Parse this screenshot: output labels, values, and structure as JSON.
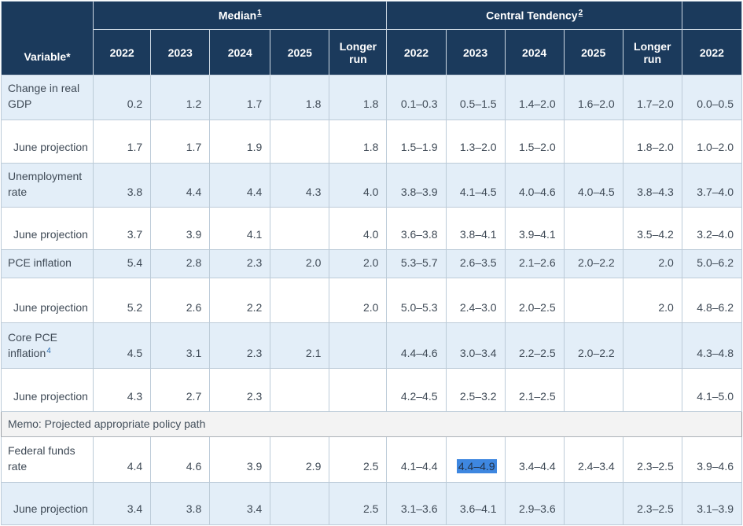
{
  "table": {
    "variable_header": "Variable*",
    "groups": [
      {
        "label": "Median",
        "footnote": "1"
      },
      {
        "label": "Central Tendency",
        "footnote": "2"
      },
      {
        "label": "",
        "footnote": ""
      }
    ],
    "year_headers": [
      "2022",
      "2023",
      "2024",
      "2025",
      "Longer run",
      "2022",
      "2023",
      "2024",
      "2025",
      "Longer run",
      "2022"
    ],
    "rows": [
      {
        "type": "data",
        "label": "Change in real GDP",
        "footnote": "",
        "indent": false,
        "shade": "blue",
        "cells": [
          "0.2",
          "1.2",
          "1.7",
          "1.8",
          "1.8",
          "0.1–0.3",
          "0.5–1.5",
          "1.4–2.0",
          "1.6–2.0",
          "1.7–2.0",
          "0.0–0.5"
        ]
      },
      {
        "type": "data",
        "label": "June projection",
        "footnote": "",
        "indent": true,
        "shade": "white",
        "cells": [
          "1.7",
          "1.7",
          "1.9",
          "",
          "1.8",
          "1.5–1.9",
          "1.3–2.0",
          "1.5–2.0",
          "",
          "1.8–2.0",
          "1.0–2.0"
        ]
      },
      {
        "type": "data",
        "label": "Unemployment rate",
        "footnote": "",
        "indent": false,
        "shade": "blue",
        "cells": [
          "3.8",
          "4.4",
          "4.4",
          "4.3",
          "4.0",
          "3.8–3.9",
          "4.1–4.5",
          "4.0–4.6",
          "4.0–4.5",
          "3.8–4.3",
          "3.7–4.0"
        ]
      },
      {
        "type": "data",
        "label": "June projection",
        "footnote": "",
        "indent": true,
        "shade": "white",
        "cells": [
          "3.7",
          "3.9",
          "4.1",
          "",
          "4.0",
          "3.6–3.8",
          "3.8–4.1",
          "3.9–4.1",
          "",
          "3.5–4.2",
          "3.2–4.0"
        ]
      },
      {
        "type": "data",
        "label": "PCE inflation",
        "footnote": "",
        "indent": false,
        "shade": "blue",
        "cells": [
          "5.4",
          "2.8",
          "2.3",
          "2.0",
          "2.0",
          "5.3–5.7",
          "2.6–3.5",
          "2.1–2.6",
          "2.0–2.2",
          "2.0",
          "5.0–6.2"
        ]
      },
      {
        "type": "data",
        "label": "June projection",
        "footnote": "",
        "indent": true,
        "shade": "white",
        "cells": [
          "5.2",
          "2.6",
          "2.2",
          "",
          "2.0",
          "5.0–5.3",
          "2.4–3.0",
          "2.0–2.5",
          "",
          "2.0",
          "4.8–6.2"
        ]
      },
      {
        "type": "data",
        "label": "Core PCE inflation",
        "footnote": "4",
        "indent": false,
        "shade": "blue",
        "cells": [
          "4.5",
          "3.1",
          "2.3",
          "2.1",
          "",
          "4.4–4.6",
          "3.0–3.4",
          "2.2–2.5",
          "2.0–2.2",
          "",
          "4.3–4.8"
        ]
      },
      {
        "type": "data",
        "label": "June projection",
        "footnote": "",
        "indent": true,
        "shade": "white",
        "cells": [
          "4.3",
          "2.7",
          "2.3",
          "",
          "",
          "4.2–4.5",
          "2.5–3.2",
          "2.1–2.5",
          "",
          "",
          "4.1–5.0"
        ]
      },
      {
        "type": "memo",
        "label": "Memo: Projected appropriate policy path"
      },
      {
        "type": "data",
        "label": "Federal funds rate",
        "footnote": "",
        "indent": false,
        "shade": "white",
        "cells": [
          "4.4",
          "4.6",
          "3.9",
          "2.9",
          "2.5",
          "4.1–4.4",
          "4.4–4.9",
          "3.4–4.4",
          "2.4–3.4",
          "2.3–2.5",
          "3.9–4.6"
        ]
      },
      {
        "type": "data",
        "label": "June projection",
        "footnote": "",
        "indent": true,
        "shade": "blue",
        "cells": [
          "3.4",
          "3.8",
          "3.4",
          "",
          "2.5",
          "3.1–3.6",
          "3.6–4.1",
          "2.9–3.6",
          "",
          "2.3–2.5",
          "3.1–3.9"
        ]
      }
    ]
  },
  "selection": {
    "row_index": 9,
    "cell_index": 6,
    "value": "4.4–4.9"
  },
  "colors": {
    "header_bg": "#1b3a5c",
    "row_blue": "#e3eef8",
    "memo_bg": "#f3f3f3",
    "selection_bg": "#3e87e0",
    "footnote_link": "#2b6cb0"
  }
}
